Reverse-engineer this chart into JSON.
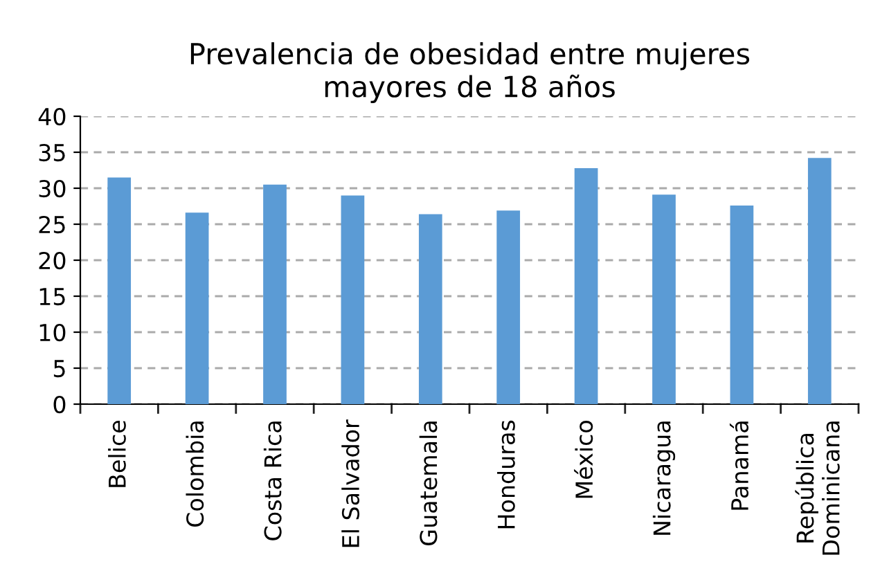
{
  "chart_data": {
    "type": "bar",
    "title": "Prevalencia de obesidad entre mujeres\nmayores de 18 años",
    "categories": [
      "Belice",
      "Colombia",
      "Costa Rica",
      "El Salvador",
      "Guatemala",
      "Honduras",
      "México",
      "Nicaragua",
      "Panamá",
      "República\nDominicana"
    ],
    "values": [
      31.5,
      26.6,
      30.5,
      29.0,
      26.4,
      26.9,
      32.8,
      29.1,
      27.6,
      34.2
    ],
    "color": "#5b9bd5",
    "ylim": [
      0,
      40
    ],
    "yticks": [
      0,
      5,
      10,
      15,
      20,
      25,
      30,
      35,
      40
    ],
    "grid": "y"
  }
}
